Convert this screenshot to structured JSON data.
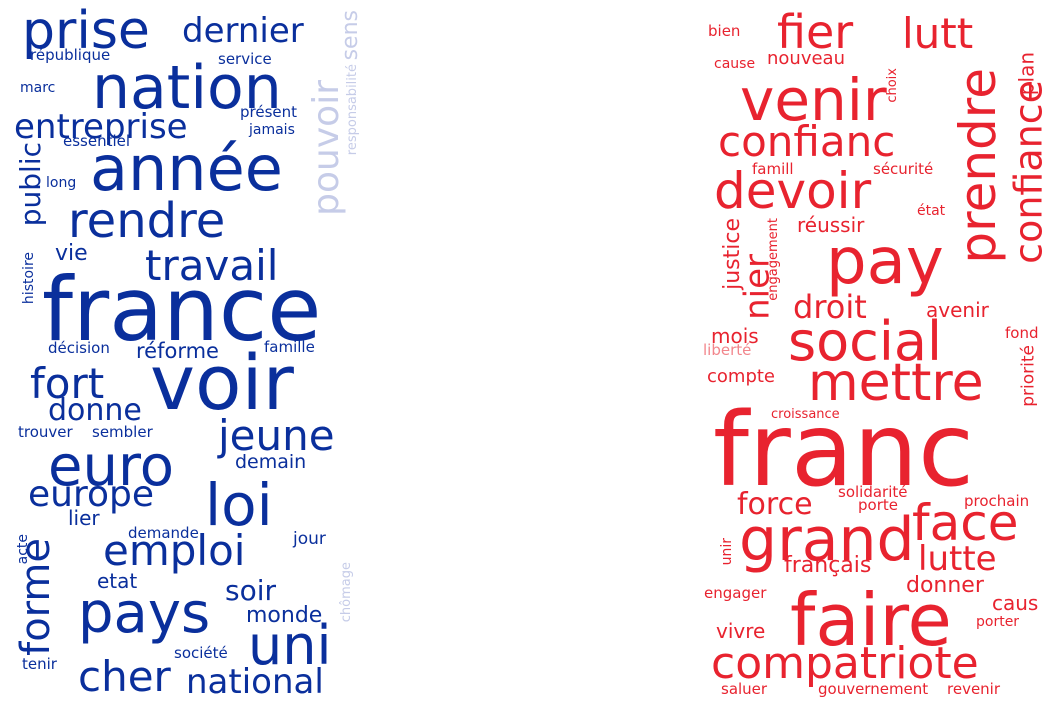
{
  "clouds": [
    {
      "name": "blue-cloud",
      "colors": {
        "strong": "#0a2f9c",
        "faint": "#c6cce8"
      },
      "words": [
        {
          "text": "prise"
        },
        {
          "text": "dernier"
        },
        {
          "text": "sens"
        },
        {
          "text": "république"
        },
        {
          "text": "service"
        },
        {
          "text": "nation"
        },
        {
          "text": "marc"
        },
        {
          "text": "présent"
        },
        {
          "text": "entreprise"
        },
        {
          "text": "jamais"
        },
        {
          "text": "responsabilité"
        },
        {
          "text": "essentiel"
        },
        {
          "text": "pouvoir"
        },
        {
          "text": "année"
        },
        {
          "text": "public"
        },
        {
          "text": "long"
        },
        {
          "text": "rendre"
        },
        {
          "text": "vie"
        },
        {
          "text": "travail"
        },
        {
          "text": "histoire"
        },
        {
          "text": "france"
        },
        {
          "text": "décision"
        },
        {
          "text": "réforme"
        },
        {
          "text": "famille"
        },
        {
          "text": "voir"
        },
        {
          "text": "fort"
        },
        {
          "text": "donne"
        },
        {
          "text": "jeune"
        },
        {
          "text": "trouver"
        },
        {
          "text": "sembler"
        },
        {
          "text": "euro"
        },
        {
          "text": "demain"
        },
        {
          "text": "europe"
        },
        {
          "text": "loi"
        },
        {
          "text": "lier"
        },
        {
          "text": "demande"
        },
        {
          "text": "forme"
        },
        {
          "text": "emploi"
        },
        {
          "text": "acte"
        },
        {
          "text": "jour"
        },
        {
          "text": "chômage"
        },
        {
          "text": "etat"
        },
        {
          "text": "soir"
        },
        {
          "text": "pays"
        },
        {
          "text": "monde"
        },
        {
          "text": "uni"
        },
        {
          "text": "société"
        },
        {
          "text": "tenir"
        },
        {
          "text": "cher"
        },
        {
          "text": "national"
        }
      ]
    },
    {
      "name": "red-cloud",
      "colors": {
        "strong": "#e8232f",
        "faint": "#f2868c"
      },
      "words": [
        {
          "text": "bien"
        },
        {
          "text": "fier"
        },
        {
          "text": "lutt"
        },
        {
          "text": "cause"
        },
        {
          "text": "nouveau"
        },
        {
          "text": "plan"
        },
        {
          "text": "venir"
        },
        {
          "text": "choix"
        },
        {
          "text": "confiance"
        },
        {
          "text": "confianc"
        },
        {
          "text": "prendre"
        },
        {
          "text": "famill"
        },
        {
          "text": "sécurité"
        },
        {
          "text": "devoir"
        },
        {
          "text": "état"
        },
        {
          "text": "réussir"
        },
        {
          "text": "justice"
        },
        {
          "text": "engagement"
        },
        {
          "text": "nier"
        },
        {
          "text": "pay"
        },
        {
          "text": "droit"
        },
        {
          "text": "avenir"
        },
        {
          "text": "mois"
        },
        {
          "text": "fond"
        },
        {
          "text": "social"
        },
        {
          "text": "liberté"
        },
        {
          "text": "priorité"
        },
        {
          "text": "compte"
        },
        {
          "text": "mettre"
        },
        {
          "text": "croissance"
        },
        {
          "text": "franc"
        },
        {
          "text": "solidarité"
        },
        {
          "text": "force"
        },
        {
          "text": "prochain"
        },
        {
          "text": "porte"
        },
        {
          "text": "grand"
        },
        {
          "text": "face"
        },
        {
          "text": "unir"
        },
        {
          "text": "français"
        },
        {
          "text": "lutte"
        },
        {
          "text": "donner"
        },
        {
          "text": "engager"
        },
        {
          "text": "caus"
        },
        {
          "text": "vivre"
        },
        {
          "text": "porter"
        },
        {
          "text": "faire"
        },
        {
          "text": "compatriote"
        },
        {
          "text": "saluer"
        },
        {
          "text": "gouvernement"
        },
        {
          "text": "revenir"
        }
      ]
    }
  ]
}
